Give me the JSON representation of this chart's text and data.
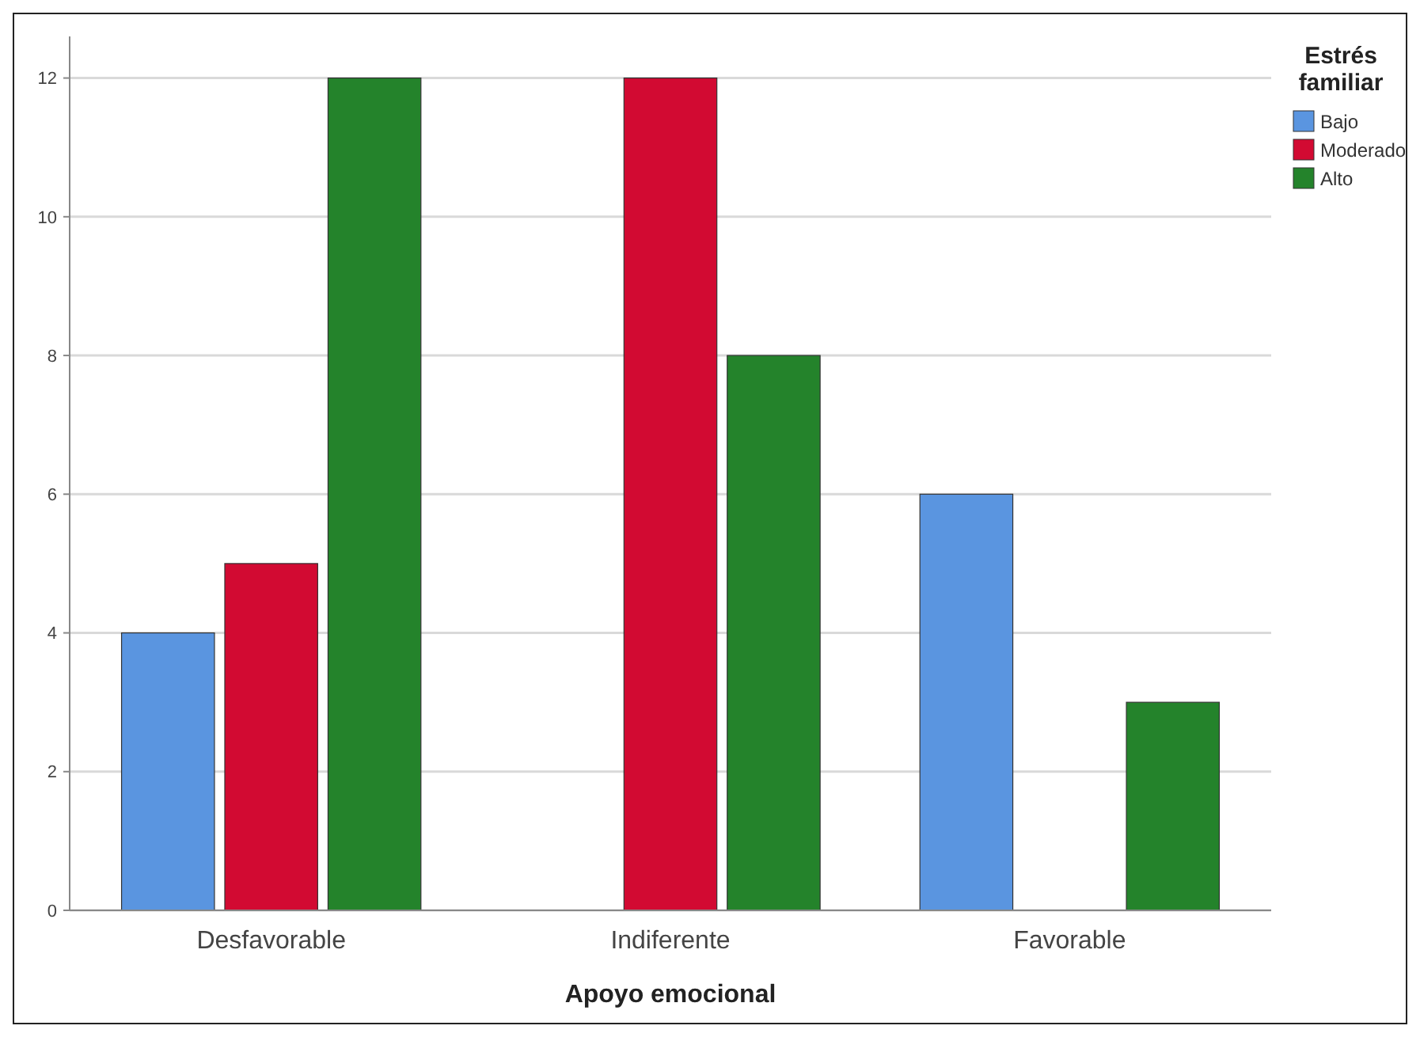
{
  "chart_data": {
    "type": "bar",
    "xlabel": "Apoyo emocional",
    "legend_title": "Estrés familiar",
    "categories": [
      "Desfavorable",
      "Indiferente",
      "Favorable"
    ],
    "series": [
      {
        "name": "Bajo",
        "color": "#5a95e0",
        "values": [
          4,
          null,
          6
        ]
      },
      {
        "name": "Moderado",
        "color": "#d20a32",
        "values": [
          5,
          12,
          null
        ]
      },
      {
        "name": "Alto",
        "color": "#24832b",
        "values": [
          12,
          8,
          3
        ]
      }
    ],
    "ylim": [
      0,
      12.6
    ],
    "yticks": [
      0,
      2,
      4,
      6,
      8,
      10,
      12
    ],
    "grid": "y",
    "legend": "top right"
  }
}
